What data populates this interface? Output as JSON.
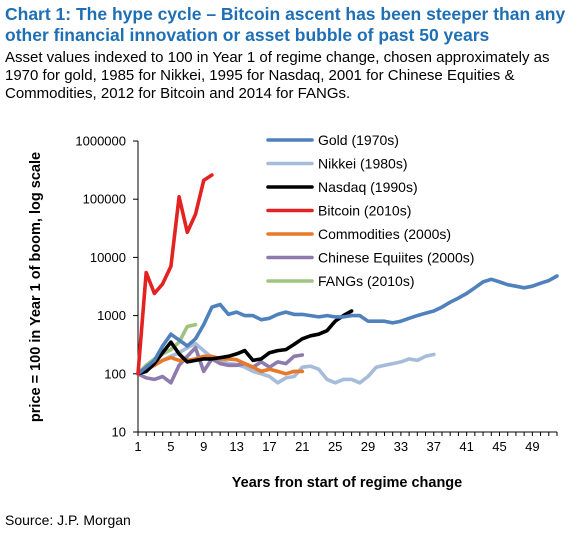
{
  "chart_data": {
    "type": "line",
    "title": "Chart 1: The hype cycle – Bitcoin ascent has been steeper than any other financial innovation or asset bubble of past 50 years",
    "subtitle": "Asset values indexed to 100 in Year 1 of regime change, chosen approximately as 1970 for gold, 1985 for Nikkei, 1995 for Nasdaq, 2001 for Chinese Equities & Commodities, 2012 for Bitcoin and 2014 for FANGs.",
    "xlabel": "Years fron start of regime change",
    "ylabel": "price = 100 in Year 1 of boom, log scale",
    "x_ticks": [
      "1",
      "5",
      "9",
      "13",
      "17",
      "21",
      "25",
      "29",
      "33",
      "37",
      "41",
      "45",
      "49"
    ],
    "y_ticks": [
      "10",
      "100",
      "1000",
      "10000",
      "100000",
      "1000000"
    ],
    "xlim": [
      1,
      52
    ],
    "ylim": [
      10,
      1000000
    ],
    "y_scale": "log",
    "grid": false,
    "legend_position": "top-right",
    "series": [
      {
        "name": "Gold (1970s)",
        "color": "#4f81bd",
        "x": [
          1,
          2,
          3,
          4,
          5,
          6,
          7,
          8,
          9,
          10,
          11,
          12,
          13,
          14,
          15,
          16,
          17,
          18,
          19,
          20,
          21,
          22,
          23,
          24,
          25,
          26,
          27,
          28,
          29,
          30,
          31,
          32,
          33,
          34,
          35,
          36,
          37,
          38,
          39,
          40,
          41,
          42,
          43,
          44,
          45,
          46,
          47,
          48,
          49,
          50,
          51,
          52
        ],
        "y": [
          100,
          130,
          170,
          300,
          480,
          380,
          300,
          400,
          700,
          1400,
          1550,
          1050,
          1150,
          1000,
          1000,
          850,
          900,
          1050,
          1150,
          1050,
          1050,
          1000,
          950,
          1000,
          950,
          950,
          1000,
          1000,
          800,
          800,
          800,
          750,
          800,
          900,
          1000,
          1100,
          1200,
          1400,
          1700,
          2000,
          2400,
          3000,
          3800,
          4200,
          3800,
          3400,
          3200,
          3000,
          3200,
          3600,
          4000,
          4800
        ]
      },
      {
        "name": "Nikkei (1980s)",
        "color": "#a6bcd9",
        "x": [
          1,
          2,
          3,
          4,
          5,
          6,
          7,
          8,
          9,
          10,
          11,
          12,
          13,
          14,
          15,
          16,
          17,
          18,
          19,
          20,
          21,
          22,
          23,
          24,
          25,
          26,
          27,
          28,
          29,
          30,
          31,
          32,
          33,
          34,
          35,
          36,
          37
        ],
        "y": [
          100,
          115,
          140,
          170,
          200,
          230,
          280,
          330,
          250,
          190,
          170,
          150,
          145,
          130,
          110,
          100,
          90,
          70,
          85,
          90,
          130,
          135,
          120,
          80,
          70,
          80,
          80,
          70,
          90,
          130,
          140,
          150,
          160,
          180,
          170,
          200,
          215
        ]
      },
      {
        "name": "Nasdaq (1990s)",
        "color": "#000000",
        "x": [
          1,
          2,
          3,
          4,
          5,
          6,
          7,
          8,
          9,
          10,
          11,
          12,
          13,
          14,
          15,
          16,
          17,
          18,
          19,
          20,
          21,
          22,
          23,
          24,
          25,
          26,
          27
        ],
        "y": [
          100,
          110,
          150,
          230,
          350,
          220,
          160,
          170,
          180,
          180,
          190,
          200,
          220,
          250,
          170,
          180,
          230,
          250,
          260,
          320,
          400,
          450,
          480,
          550,
          800,
          1000,
          1200
        ]
      },
      {
        "name": "Bitcoin (2010s)",
        "color": "#e32222",
        "x": [
          1,
          2,
          3,
          4,
          5,
          6,
          7,
          8,
          9,
          10
        ],
        "y": [
          100,
          5500,
          2400,
          3500,
          7000,
          110000,
          27000,
          55000,
          210000,
          260000
        ]
      },
      {
        "name": "Commodities (2000s)",
        "color": "#e8792a",
        "x": [
          1,
          2,
          3,
          4,
          5,
          6,
          7,
          8,
          9,
          10,
          11,
          12,
          13,
          14,
          15,
          16,
          17,
          18,
          19,
          20,
          21
        ],
        "y": [
          100,
          120,
          140,
          170,
          190,
          170,
          170,
          180,
          200,
          200,
          180,
          180,
          175,
          150,
          130,
          110,
          120,
          110,
          100,
          110,
          110
        ]
      },
      {
        "name": "Chinese Equiites (2000s)",
        "color": "#8e7bad",
        "x": [
          1,
          2,
          3,
          4,
          5,
          6,
          7,
          8,
          9,
          10,
          11,
          12,
          13,
          14,
          15,
          16,
          17,
          18,
          19,
          20,
          21
        ],
        "y": [
          100,
          85,
          80,
          90,
          70,
          140,
          200,
          280,
          110,
          180,
          150,
          140,
          140,
          150,
          130,
          160,
          130,
          160,
          150,
          200,
          210
        ]
      },
      {
        "name": "FANGs (2010s)",
        "color": "#9fc47f",
        "x": [
          1,
          2,
          3,
          4,
          5,
          6,
          7,
          8
        ],
        "y": [
          100,
          140,
          180,
          220,
          260,
          350,
          650,
          700
        ]
      }
    ]
  },
  "source": "Source: J.P. Morgan"
}
